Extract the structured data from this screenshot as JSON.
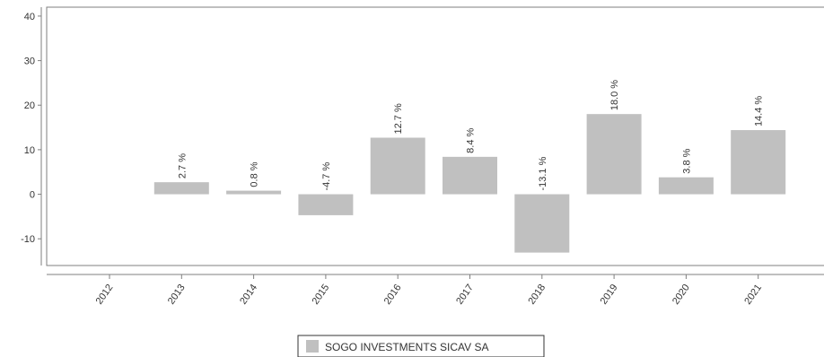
{
  "chart_data": {
    "type": "bar",
    "categories": [
      "2012",
      "2013",
      "2014",
      "2015",
      "2016",
      "2017",
      "2018",
      "2019",
      "2020",
      "2021"
    ],
    "series": [
      {
        "name": "SOGO INVESTMENTS SICAV SA",
        "values": [
          null,
          2.7,
          0.8,
          -4.7,
          12.7,
          8.4,
          -13.1,
          18.0,
          3.8,
          14.4
        ],
        "labels": [
          "",
          "2.7 %",
          "0.8 %",
          "-4.7 %",
          "12.7 %",
          "8.4 %",
          "-13.1 %",
          "18.0 %",
          "3.8 %",
          "14.4 %"
        ]
      }
    ],
    "yticks": [
      "40",
      "30",
      "20",
      "10",
      "0",
      "-10"
    ],
    "ylim": [
      -16,
      42
    ],
    "grid": false,
    "legend_position": "bottom-center",
    "bar_color": "#c0c0c0"
  }
}
